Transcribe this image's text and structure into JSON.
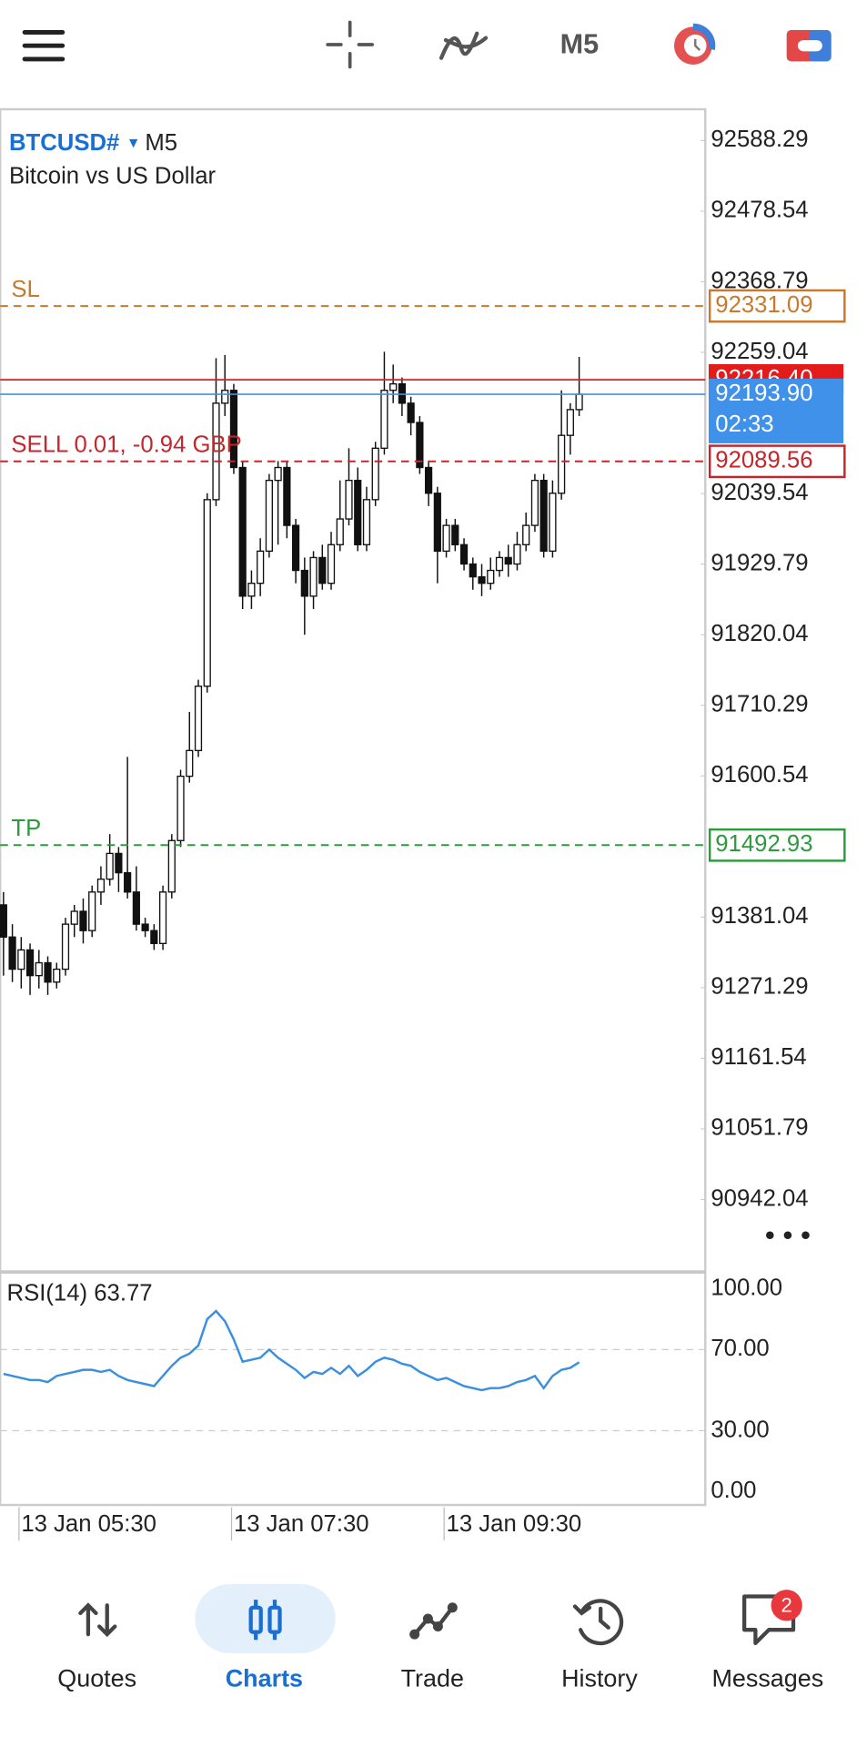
{
  "toolbar": {
    "timeframe": "M5"
  },
  "nav": {
    "items": [
      "Quotes",
      "Charts",
      "Trade",
      "History",
      "Messages"
    ],
    "active": 1,
    "badge": 2
  },
  "chart_data": {
    "type": "candlestick",
    "symbol": "BTCUSD#",
    "timeframe": "M5",
    "subtitle": "Bitcoin vs US Dollar",
    "categories": [
      null,
      null,
      "13 Jan 05:30",
      null,
      null,
      null,
      null,
      null,
      null,
      null,
      null,
      null,
      null,
      null,
      null,
      null,
      null,
      null,
      null,
      null,
      null,
      null,
      null,
      null,
      null,
      null,
      "13 Jan 07:30",
      null,
      null,
      null,
      null,
      null,
      null,
      null,
      null,
      null,
      null,
      null,
      null,
      null,
      null,
      null,
      null,
      null,
      null,
      null,
      null,
      null,
      null,
      null,
      "13 Jan 09:30",
      null,
      null,
      null,
      null,
      null,
      null,
      null,
      null,
      null,
      null,
      null,
      null,
      null,
      null,
      null
    ],
    "open": [
      91400,
      91350,
      91300,
      91330,
      91290,
      91310,
      91280,
      91300,
      91370,
      91390,
      91360,
      91420,
      91440,
      91480,
      91450,
      91420,
      91370,
      91360,
      91340,
      91420,
      91500,
      91600,
      91640,
      91740,
      92030,
      92180,
      92200,
      92080,
      91880,
      91900,
      91950,
      92060,
      92080,
      91990,
      91920,
      91880,
      91940,
      91900,
      91960,
      92000,
      92060,
      91960,
      92030,
      92110,
      92200,
      92210,
      92180,
      92150,
      92080,
      92040,
      91950,
      91990,
      91960,
      91930,
      91910,
      91900,
      91920,
      91940,
      91930,
      91960,
      91990,
      92060,
      91950,
      92040,
      92130,
      92170
    ],
    "high": [
      91420,
      91370,
      91350,
      91340,
      91330,
      91320,
      91310,
      91380,
      91400,
      91410,
      91430,
      91460,
      91510,
      91490,
      91630,
      91460,
      91380,
      91370,
      91430,
      91510,
      91610,
      91700,
      91750,
      92040,
      92250,
      92255,
      92210,
      92090,
      91920,
      91970,
      92070,
      92090,
      92090,
      92000,
      91940,
      91950,
      91960,
      91980,
      92060,
      92110,
      92080,
      92050,
      92120,
      92260,
      92240,
      92220,
      92190,
      92160,
      92090,
      92050,
      92000,
      92000,
      91970,
      91940,
      91930,
      91940,
      91950,
      91960,
      91980,
      92010,
      92070,
      92070,
      92060,
      92200,
      92180,
      92252
    ],
    "low": [
      91290,
      91280,
      91270,
      91260,
      91270,
      91260,
      91270,
      91290,
      91350,
      91340,
      91350,
      91400,
      91430,
      91420,
      91410,
      91360,
      91350,
      91330,
      91330,
      91410,
      91490,
      91590,
      91630,
      91730,
      92020,
      92160,
      92070,
      91860,
      91860,
      91880,
      91940,
      91960,
      91970,
      91900,
      91820,
      91860,
      91890,
      91890,
      91950,
      91990,
      91950,
      91950,
      92020,
      92100,
      92180,
      92160,
      92130,
      92070,
      92020,
      91900,
      91940,
      91950,
      91920,
      91890,
      91880,
      91890,
      91910,
      91910,
      91920,
      91950,
      91980,
      91940,
      91940,
      92030,
      92100,
      92160
    ],
    "close": [
      91350,
      91300,
      91330,
      91290,
      91310,
      91280,
      91300,
      91370,
      91390,
      91360,
      91420,
      91440,
      91480,
      91450,
      91420,
      91370,
      91360,
      91340,
      91420,
      91500,
      91600,
      91640,
      91740,
      92030,
      92180,
      92200,
      92080,
      91880,
      91900,
      91950,
      92060,
      92080,
      91990,
      91920,
      91880,
      91940,
      91900,
      91960,
      92000,
      92060,
      91960,
      92030,
      92110,
      92200,
      92210,
      92180,
      92150,
      92080,
      92040,
      91950,
      91990,
      91960,
      91930,
      91910,
      91900,
      91920,
      91940,
      91930,
      91960,
      91990,
      92060,
      91950,
      92040,
      92130,
      92170,
      92193.9
    ],
    "ylim": [
      90831,
      92637
    ],
    "yticks": [
      92588.29,
      92478.54,
      92368.79,
      92259.04,
      92039.54,
      91929.79,
      91820.04,
      91710.29,
      91600.54,
      91381.04,
      91271.29,
      91161.54,
      91051.79,
      90942.04
    ],
    "levels": [
      {
        "name": "SL",
        "value": 92331.09,
        "color": "#c8792c"
      },
      {
        "name": "TP",
        "value": 91492.93,
        "color": "#2e9a3c"
      },
      {
        "name": "SELL 0.01,  -0.94 GBP",
        "value": 92089.56,
        "color": "#c4262c"
      }
    ],
    "ask": {
      "value": 92216.4,
      "label": "92216.40",
      "color": "#e31b1b"
    },
    "bid": {
      "value": 92193.9,
      "label": "92193.90",
      "timer": "02:33",
      "color": "#3f91ea"
    },
    "rsi": {
      "name": "RSI(14)",
      "color": "#3a8fe0",
      "ylim": [
        0,
        100
      ],
      "yticks": [
        {
          "value": 100,
          "label": "100.00"
        },
        {
          "value": 70,
          "label": "70.00"
        },
        {
          "value": 30,
          "label": "30.00"
        },
        {
          "value": 0,
          "label": "0.00"
        }
      ],
      "values": [
        58,
        57,
        56,
        55,
        55,
        54,
        57,
        58,
        59,
        60,
        60,
        59,
        60,
        57,
        55,
        54,
        53,
        52,
        57,
        62,
        66,
        68,
        72,
        85,
        89,
        84,
        75,
        64,
        65,
        66,
        70,
        66,
        63,
        60,
        56,
        59,
        58,
        61,
        58,
        62,
        57,
        60,
        64,
        66,
        65,
        63,
        62,
        59,
        57,
        55,
        56,
        54,
        52,
        51,
        50,
        51,
        51,
        52,
        54,
        55,
        57,
        51,
        57,
        60,
        61,
        63.77
      ]
    }
  }
}
